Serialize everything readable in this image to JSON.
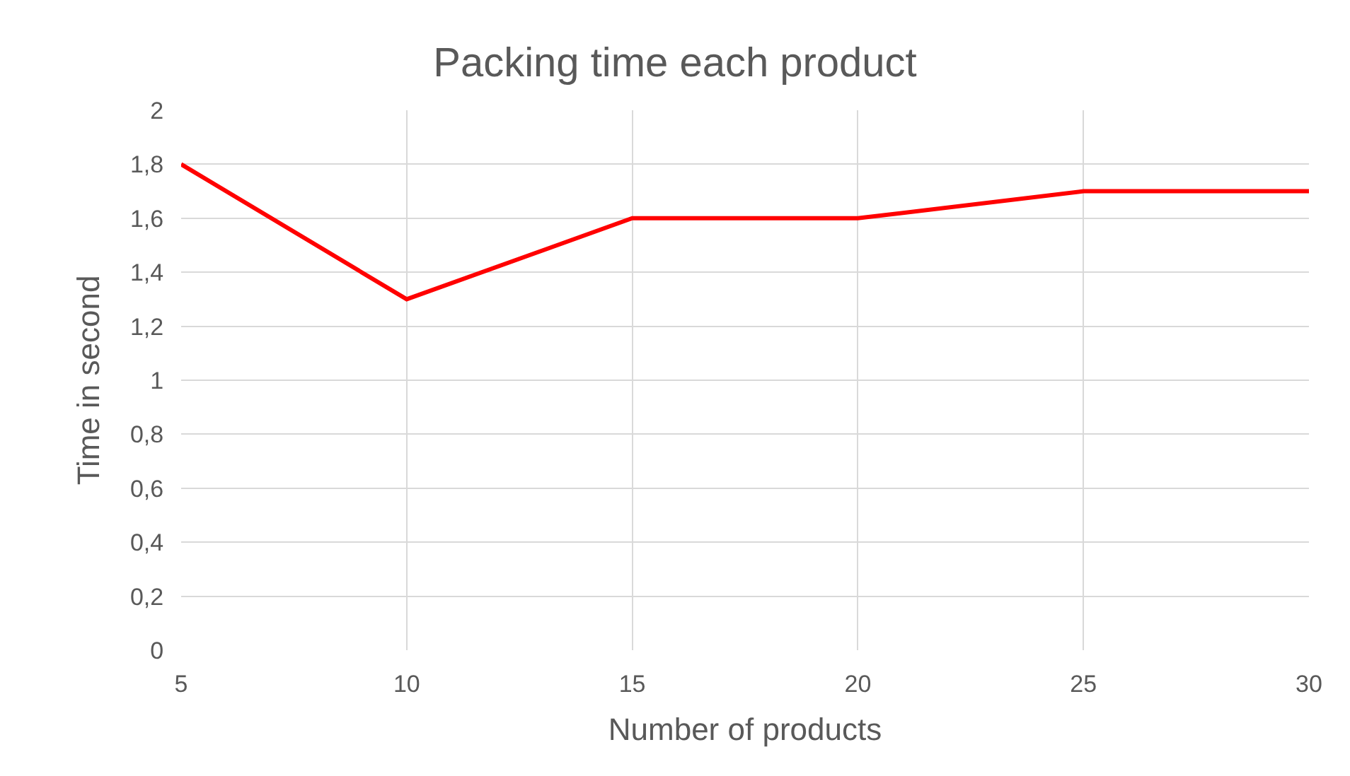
{
  "chart_data": {
    "type": "line",
    "title": "Packing time each product",
    "xlabel": "Number of products",
    "ylabel": "Time in second",
    "x": [
      5,
      10,
      15,
      20,
      25,
      30
    ],
    "series": [
      {
        "color": "#ff0000",
        "values": [
          1.8,
          1.3,
          1.6,
          1.6,
          1.7,
          1.7
        ]
      }
    ],
    "xlim": [
      5,
      30
    ],
    "xticks": [
      5,
      10,
      15,
      20,
      25,
      30
    ],
    "ylim": [
      0,
      2
    ],
    "yticks": [
      0,
      {
        "value": 0.2,
        "label": "0,2"
      },
      {
        "value": 0.4,
        "label": "0,4"
      },
      {
        "value": 0.6,
        "label": "0,6"
      },
      {
        "value": 0.8,
        "label": "0,8"
      },
      1,
      {
        "value": 1.2,
        "label": "1,2"
      },
      {
        "value": 1.4,
        "label": "1,4"
      },
      {
        "value": 1.6,
        "label": "1,6"
      },
      {
        "value": 1.8,
        "label": "1,8"
      },
      2
    ],
    "grid": true,
    "marker": "none",
    "line_style": "solid"
  }
}
